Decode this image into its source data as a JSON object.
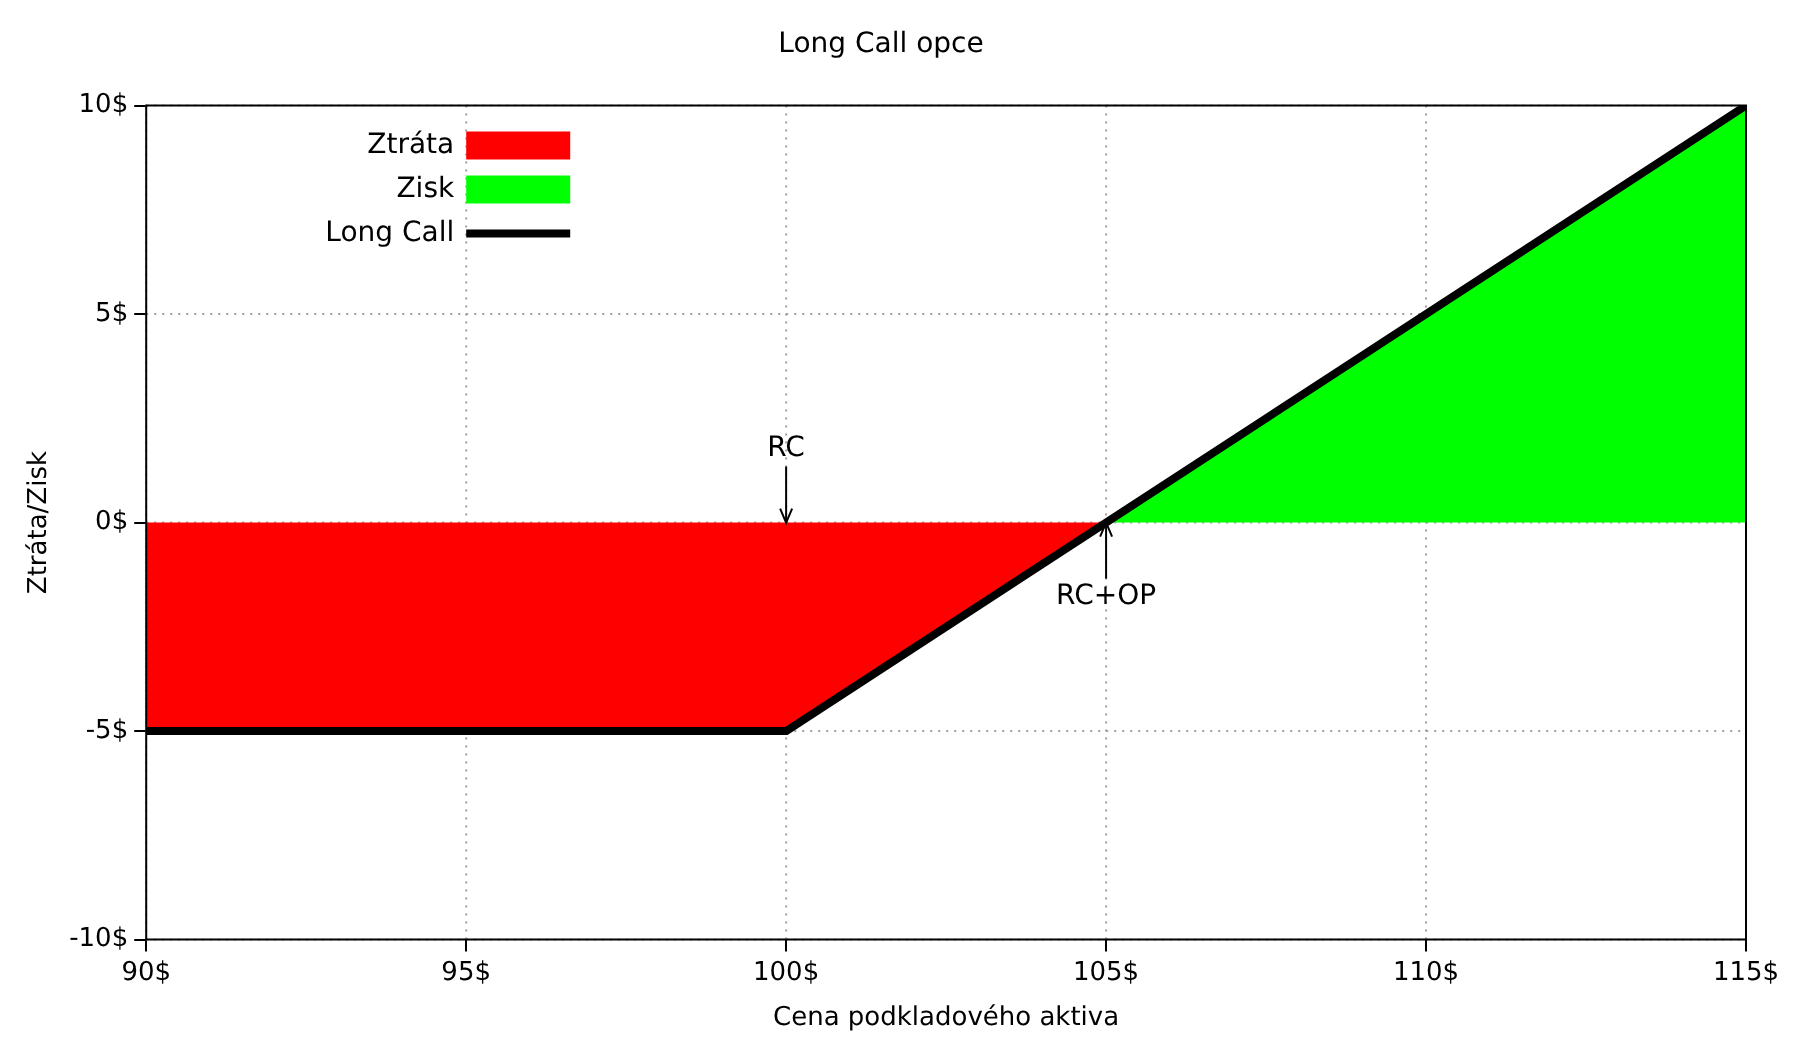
{
  "chart_data": {
    "type": "area",
    "title": "Long Call opce",
    "xlabel": "Cena podkladového aktiva",
    "ylabel": "Ztráta/Zisk",
    "xlim": [
      90,
      115
    ],
    "xticks": [
      {
        "value": 90,
        "label": "90$"
      },
      {
        "value": 95,
        "label": "95$"
      },
      {
        "value": 100,
        "label": "100$"
      },
      {
        "value": 105,
        "label": "105$"
      },
      {
        "value": 110,
        "label": "110$"
      },
      {
        "value": 115,
        "label": "115$"
      }
    ],
    "ylim": [
      -10,
      10
    ],
    "yticks": [
      {
        "value": -10,
        "label": "-10$"
      },
      {
        "value": -5,
        "label": "-5$"
      },
      {
        "value": 0,
        "label": "0$"
      },
      {
        "value": 5,
        "label": "5$"
      },
      {
        "value": 10,
        "label": "10$"
      }
    ],
    "series": [
      {
        "name": "Ztráta",
        "color": "#ff0000",
        "x": [
          90,
          100,
          105
        ],
        "values": [
          -5,
          -5,
          0
        ]
      },
      {
        "name": "Zisk",
        "color": "#00ff00",
        "x": [
          105,
          115
        ],
        "values": [
          0,
          10
        ]
      },
      {
        "name": "Long Call",
        "type": "line",
        "color": "#000000",
        "x": [
          90,
          100,
          115
        ],
        "values": [
          -5,
          -5,
          10
        ]
      }
    ],
    "annotations": [
      {
        "text": "RC",
        "x": 100,
        "y": 0
      },
      {
        "text": "RC+OP",
        "x": 105,
        "y": 0
      }
    ],
    "grid": true,
    "legend": "top left"
  }
}
